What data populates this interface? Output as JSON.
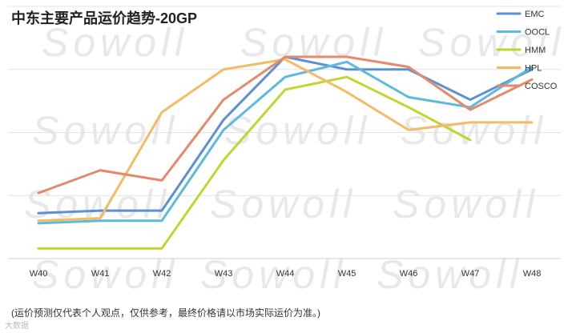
{
  "watermark": "Sowoll",
  "footnote": "(运价预测仅代表个人观点，仅供参考，最终价格请以市场实际运价为准。)",
  "corner_mark": "大数据",
  "chart_data": {
    "type": "line",
    "title": "中东主要产品运价趋势-20GP",
    "xlabel": "",
    "ylabel": "",
    "categories": [
      "W40",
      "W41",
      "W42",
      "W43",
      "W44",
      "W45",
      "W46",
      "W47",
      "W48"
    ],
    "ylim": [
      0,
      100
    ],
    "grid": true,
    "legend_position": "top-right",
    "series": [
      {
        "name": "EMC",
        "color": "#5b8fd6",
        "values": [
          18,
          19,
          19,
          55,
          80,
          75,
          75,
          63,
          75
        ]
      },
      {
        "name": "OOCL",
        "color": "#5fb9de",
        "values": [
          14,
          15,
          15,
          51,
          72,
          78,
          64,
          60,
          76
        ]
      },
      {
        "name": "HMM",
        "color": "#c2d433",
        "values": [
          4,
          4,
          4,
          39,
          67,
          72,
          60,
          47,
          null
        ]
      },
      {
        "name": "HPL",
        "color": "#f2bb66",
        "values": [
          15,
          16,
          58,
          75,
          79,
          66,
          51,
          54,
          54
        ]
      },
      {
        "name": "COSCO",
        "color": "#e5896d",
        "values": [
          26,
          35,
          31,
          63,
          80,
          80,
          76,
          59,
          71
        ]
      }
    ]
  }
}
